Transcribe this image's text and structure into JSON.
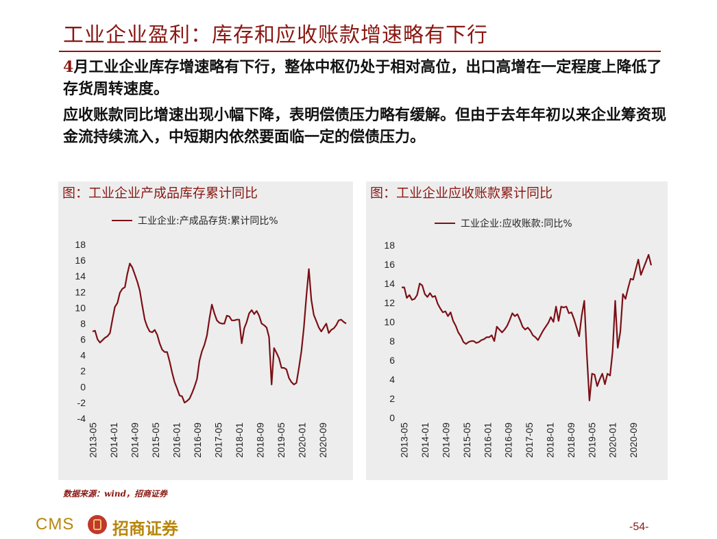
{
  "title": "工业企业盈利：库存和应收账款增速略有下行",
  "paragraph1": {
    "first_char": "4",
    "rest": "月工业企业库存增速略有下行，整体中枢仍处于相对高位，出口高增在一定程度上降低了存货周转速度。"
  },
  "paragraph2": "应收账款同比增速出现小幅下降，表明偿债压力略有缓解。但由于去年年初以来企业筹资现金流持续流入，中短期内依然要面临一定的偿债压力。",
  "source": "数据来源：wind，招商证券",
  "logo": {
    "latin": "CMS",
    "chinese": "招商证券",
    "icon": "cms-logo-icon"
  },
  "page_number": "-54-",
  "colors": {
    "accent": "#8a1712",
    "line": "#7b0f15",
    "panel": "#ededed",
    "logo": "#b8860b"
  },
  "chart_data": [
    {
      "type": "line",
      "title": "图：工业企业产成品库存累计同比",
      "series": [
        {
          "name": "工业企业:产成品存货:累计同比%",
          "values": [
            7.0,
            7.1,
            6.0,
            5.6,
            5.9,
            6.2,
            6.4,
            6.8,
            8.5,
            10.1,
            10.6,
            11.9,
            12.4,
            12.6,
            14.3,
            15.6,
            15.1,
            14.2,
            13.3,
            12.2,
            10.3,
            8.5,
            7.6,
            7.0,
            6.9,
            7.2,
            6.6,
            5.5,
            4.7,
            4.4,
            4.4,
            3.2,
            1.8,
            0.6,
            -0.2,
            -1.1,
            -1.2,
            -2.0,
            -1.8,
            -1.5,
            -0.8,
            0.0,
            1.0,
            3.3,
            4.5,
            5.3,
            6.5,
            8.6,
            10.4,
            9.3,
            8.4,
            8.1,
            8.0,
            8.0,
            9.0,
            8.9,
            8.4,
            8.4,
            8.5,
            8.5,
            5.5,
            7.4,
            8.2,
            9.3,
            9.7,
            9.2,
            9.6,
            9.0,
            8.0,
            7.8,
            7.5,
            6.3,
            0.3,
            4.9,
            4.3,
            3.6,
            2.4,
            2.4,
            2.2,
            1.1,
            0.6,
            0.3,
            0.5,
            2.4,
            4.5,
            7.5,
            11.5,
            14.9,
            11.0,
            9.1,
            8.3,
            7.5,
            7.0,
            7.5,
            8.0,
            6.8,
            7.2,
            7.4,
            7.8,
            8.4,
            8.5,
            8.2,
            8.0
          ],
          "color": "#7b0f15"
        }
      ],
      "x_tick_labels": [
        "2013-05",
        "2014-01",
        "2014-09",
        "2015-05",
        "2016-01",
        "2016-09",
        "2017-05",
        "2018-01",
        "2018-09",
        "2019-05",
        "2020-01",
        "2020-09"
      ],
      "y_ticks": [
        18,
        16,
        14,
        12,
        10,
        8,
        6,
        4,
        2,
        0,
        -2,
        -4
      ],
      "ylim": [
        -4,
        18
      ],
      "legend_position": "top",
      "grid": false
    },
    {
      "type": "line",
      "title": "图：工业企业应收账款累计同比",
      "series": [
        {
          "name": "工业企业:应收账款:同比%",
          "values": [
            13.6,
            13.6,
            12.5,
            12.8,
            12.3,
            12.4,
            12.8,
            14.0,
            13.8,
            12.9,
            12.6,
            13.0,
            12.6,
            12.7,
            11.9,
            11.4,
            11.0,
            11.1,
            10.6,
            11.0,
            10.1,
            9.6,
            8.9,
            8.5,
            7.9,
            7.7,
            7.9,
            8.0,
            8.0,
            7.8,
            7.9,
            8.1,
            8.2,
            8.4,
            8.4,
            8.6,
            8.0,
            9.5,
            9.2,
            8.9,
            9.2,
            9.6,
            10.2,
            10.9,
            10.6,
            10.8,
            10.2,
            9.5,
            9.2,
            9.4,
            9.1,
            8.6,
            8.4,
            8.1,
            8.6,
            9.1,
            9.5,
            9.9,
            10.5,
            10.0,
            11.6,
            10.1,
            11.6,
            11.5,
            11.6,
            10.9,
            11.0,
            10.3,
            9.4,
            8.5,
            10.7,
            12.2,
            6.5,
            1.8,
            4.6,
            4.5,
            3.3,
            4.0,
            4.6,
            3.5,
            4.6,
            4.4,
            6.9,
            12.2,
            7.3,
            9.0,
            12.9,
            12.4,
            13.5,
            14.5,
            14.4,
            15.5,
            16.5,
            14.9,
            15.6,
            16.3,
            17.0,
            15.9
          ],
          "color": "#7b0f15"
        }
      ],
      "x_tick_labels": [
        "2013-05",
        "2014-01",
        "2014-09",
        "2015-05",
        "2016-01",
        "2016-09",
        "2017-05",
        "2018-01",
        "2018-09",
        "2019-05",
        "2020-01",
        "2020-09"
      ],
      "y_ticks": [
        18,
        16,
        14,
        12,
        10,
        8,
        6,
        4,
        2,
        0
      ],
      "ylim": [
        0,
        18
      ],
      "legend_position": "top",
      "grid": false
    }
  ]
}
